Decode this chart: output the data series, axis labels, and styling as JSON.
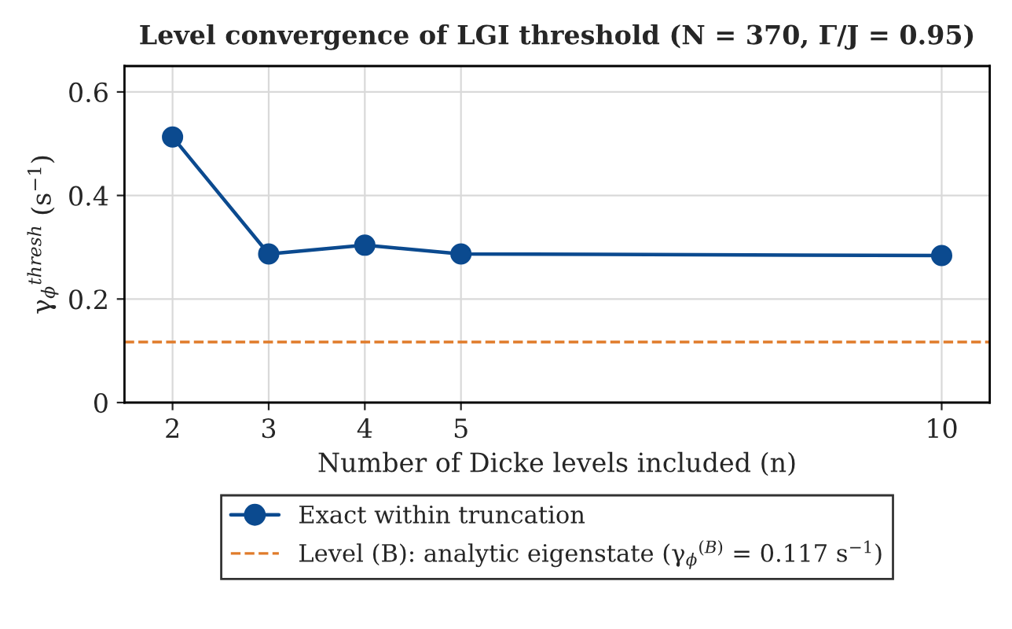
{
  "chart_data": {
    "type": "line",
    "title": "Level convergence of LGI threshold (N = 370, Γ/J = 0.95)",
    "xlabel": "Number of Dicke levels included (n)",
    "ylabel": "γ$_{ϕ}$$^{thresh}$ (s$^{−1}$)",
    "x": [
      2,
      3,
      4,
      5,
      10
    ],
    "series": [
      {
        "name": "Exact within truncation",
        "color": "#0b4a8f",
        "values": [
          0.513,
          0.287,
          0.304,
          0.287,
          0.284
        ]
      }
    ],
    "ref_lines": [
      {
        "axis": "y",
        "value": 0.117,
        "label": "Level (B): analytic eigenstate (γ$_{ϕ}$$^{(B)}$ = 0.117 s$^{−1}$)",
        "color": "#e07b2a",
        "line_style": "dashed"
      }
    ],
    "xlim": [
      1.5,
      10.5
    ],
    "xticks": [
      2,
      3,
      4,
      5,
      10
    ],
    "ylim": [
      0,
      0.65
    ],
    "yticks": [
      0,
      0.2,
      0.4,
      0.6
    ],
    "grid": true,
    "legend": "bottom",
    "marker": "circle",
    "line_style": "solid"
  }
}
